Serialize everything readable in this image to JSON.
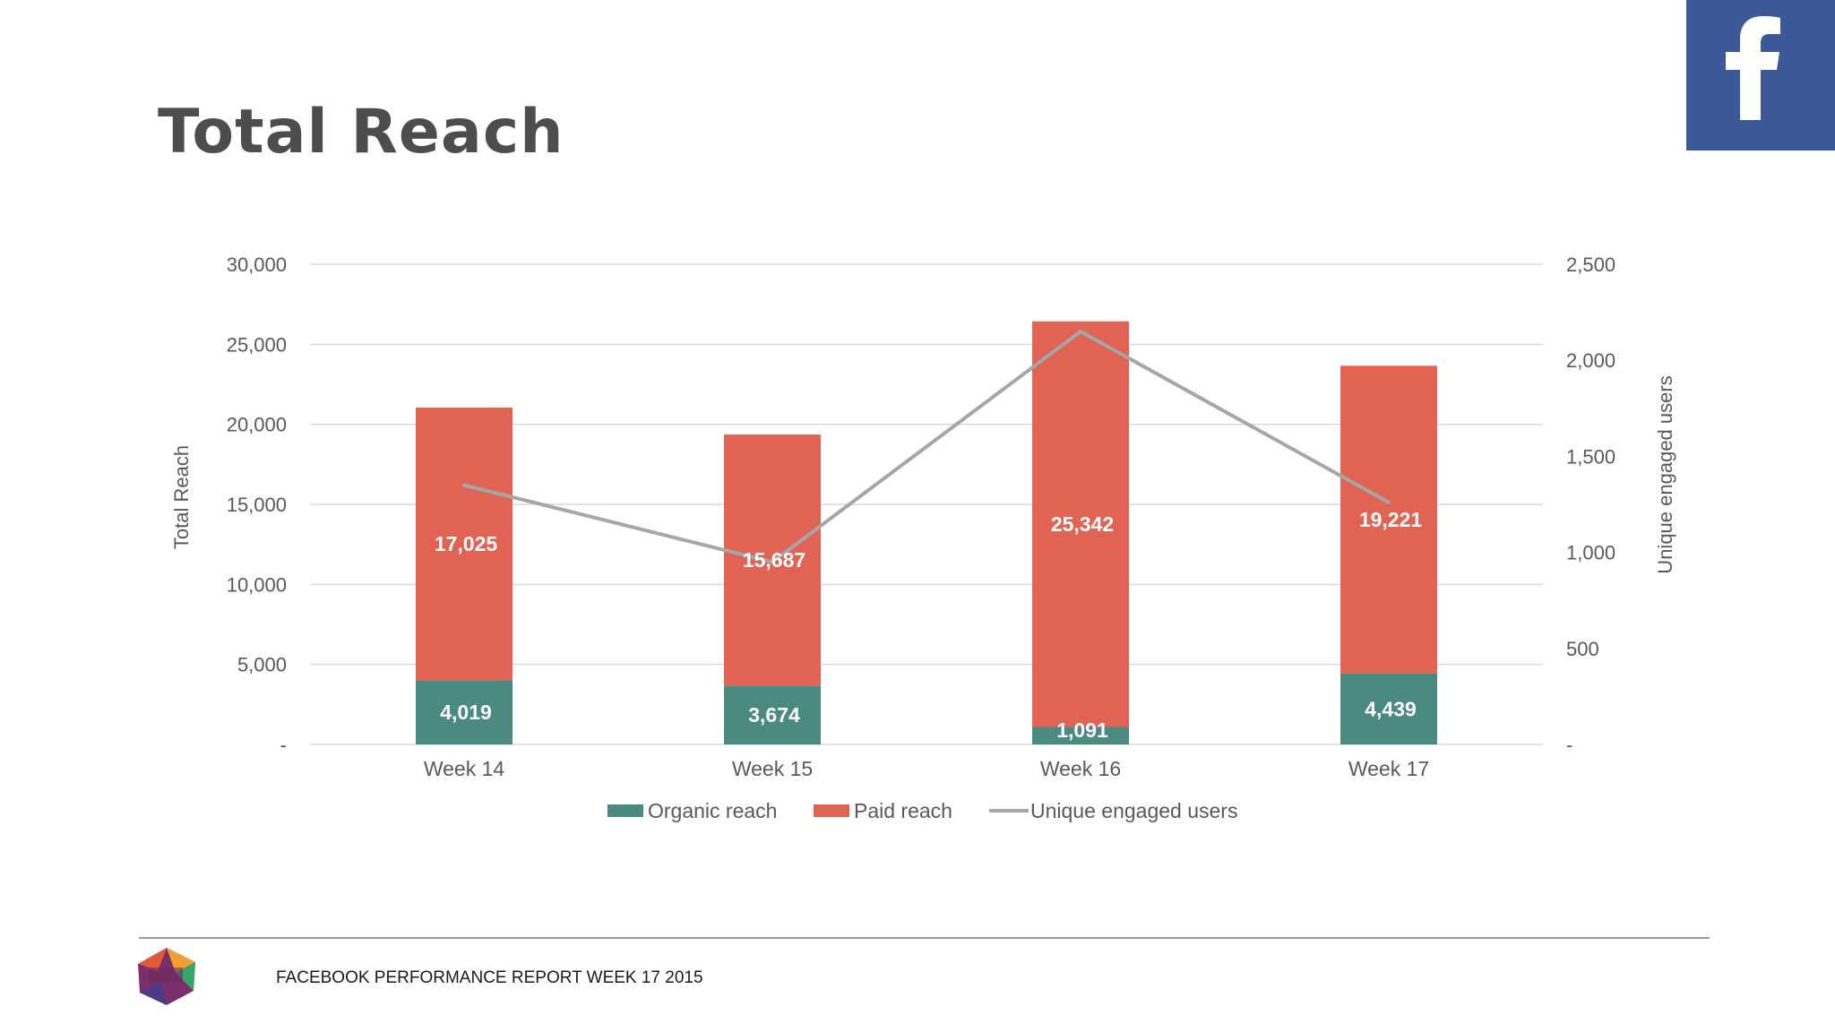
{
  "slide": {
    "title": "Total Reach"
  },
  "brand": {
    "badge_icon": "facebook-f-icon",
    "badge_letter": "f",
    "badge_color": "#3b5998"
  },
  "footer": {
    "report_label": "FACEBOOK PERFORMANCE REPORT WEEK 17 2015",
    "logo_icon": "social-status-logo"
  },
  "colors": {
    "organic": "#4b8a80",
    "paid": "#e06353",
    "line": "#a6a6a6",
    "grid": "#d9d9d9",
    "axis_text": "#595959"
  },
  "chart_data": {
    "type": "bar",
    "stacked": true,
    "categories": [
      "Week 14",
      "Week 15",
      "Week 16",
      "Week 17"
    ],
    "series": [
      {
        "name": "Organic reach",
        "type": "bar",
        "axis": "left",
        "values": [
          4019,
          3674,
          1091,
          4439
        ],
        "labels": [
          "4,019",
          "3,674",
          "1,091",
          "4,439"
        ]
      },
      {
        "name": "Paid reach",
        "type": "bar",
        "axis": "left",
        "values": [
          17025,
          15687,
          25342,
          19221
        ],
        "labels": [
          "17,025",
          "15,687",
          "25,342",
          "19,221"
        ]
      },
      {
        "name": "Unique engaged users",
        "type": "line",
        "axis": "right",
        "values": [
          1350,
          950,
          2150,
          1260
        ]
      }
    ],
    "ylabel": "Total Reach",
    "y2label": "Unique engaged users",
    "ylim": [
      0,
      30000
    ],
    "y2lim": [
      0,
      2500
    ],
    "yticks": [
      "-",
      "5,000",
      "10,000",
      "15,000",
      "20,000",
      "25,000",
      "30,000"
    ],
    "y2ticks": [
      "-",
      "500",
      "1,000",
      "1,500",
      "2,000",
      "2,500"
    ],
    "grid": true,
    "legend_position": "bottom"
  }
}
